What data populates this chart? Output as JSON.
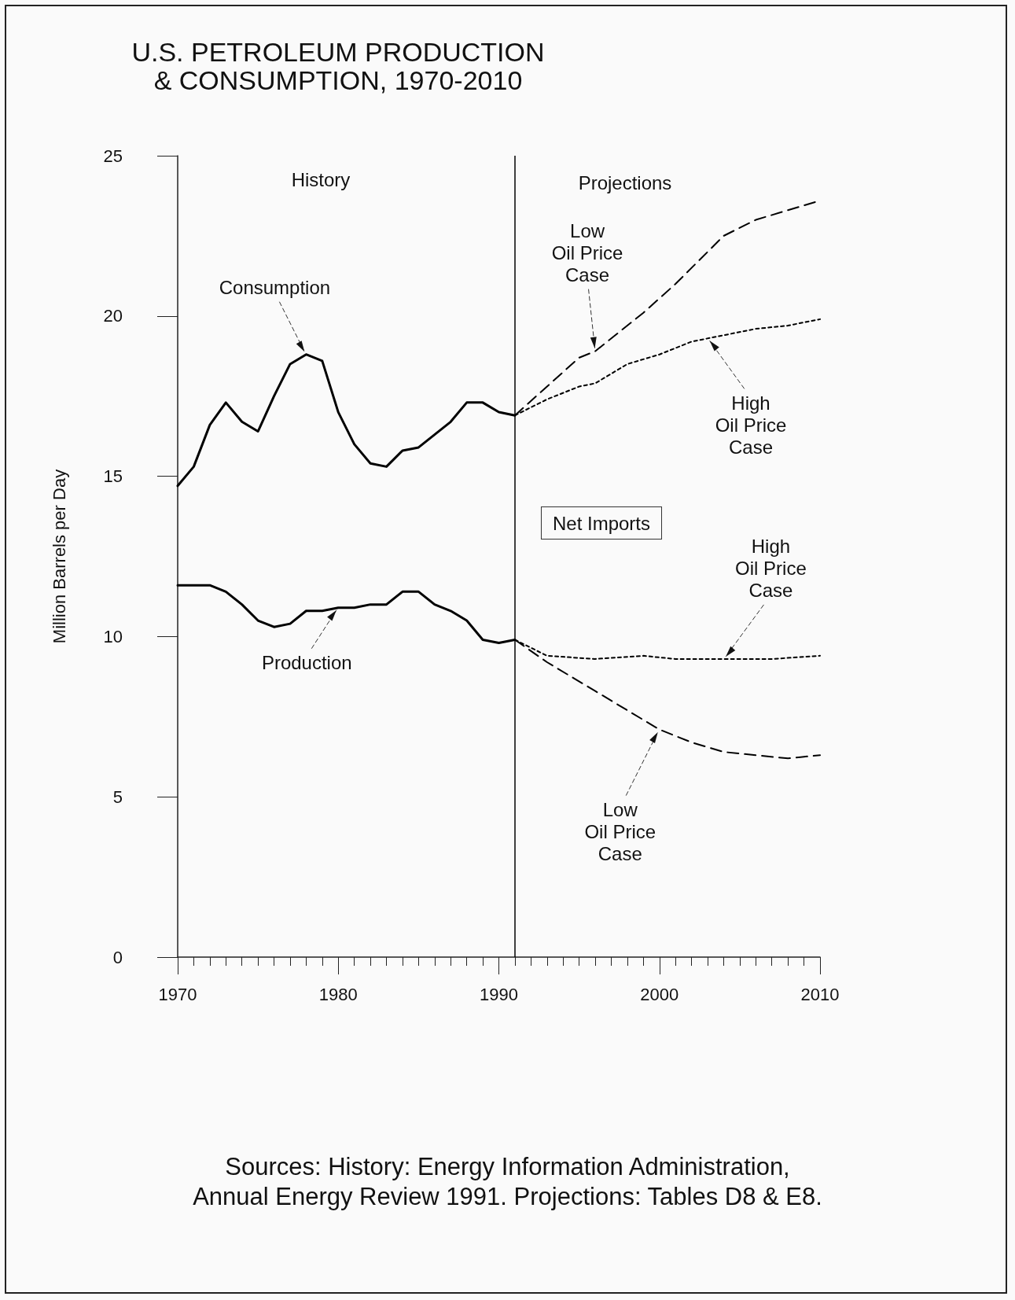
{
  "chart_data": {
    "type": "line",
    "title": "U.S. PETROLEUM PRODUCTION\n& CONSUMPTION, 1970-2010",
    "ylabel": "Million Barrels per Day",
    "xlim": [
      1970,
      2010
    ],
    "xticks": [
      1970,
      1980,
      1990,
      2000,
      2010
    ],
    "ylim": [
      0,
      25
    ],
    "yticks": [
      0,
      5,
      10,
      15,
      20,
      25
    ],
    "grid": false,
    "marker": "none",
    "series": [
      {
        "color": "#000000",
        "line_style": "solid",
        "x": [
          1970,
          1971,
          1972,
          1973,
          1974,
          1975,
          1976,
          1977,
          1978,
          1979,
          1980,
          1981,
          1982,
          1983,
          1984,
          1985,
          1986,
          1987,
          1988,
          1989,
          1990,
          1991
        ],
        "values": [
          14.7,
          15.3,
          16.6,
          17.3,
          16.7,
          16.4,
          17.5,
          18.5,
          18.8,
          18.6,
          17.0,
          16.0,
          15.4,
          15.3,
          15.8,
          15.9,
          16.3,
          16.7,
          17.3,
          17.3,
          17.0,
          16.9
        ]
      },
      {
        "color": "#000000",
        "line_style": "solid",
        "x": [
          1970,
          1971,
          1972,
          1973,
          1974,
          1975,
          1976,
          1977,
          1978,
          1979,
          1980,
          1981,
          1982,
          1983,
          1984,
          1985,
          1986,
          1987,
          1988,
          1989,
          1990,
          1991
        ],
        "values": [
          11.6,
          11.6,
          11.6,
          11.4,
          11.0,
          10.5,
          10.3,
          10.4,
          10.8,
          10.8,
          10.9,
          10.9,
          11.0,
          11.0,
          11.4,
          11.4,
          11.0,
          10.8,
          10.5,
          9.9,
          9.8,
          9.9
        ]
      },
      {
        "color": "#000000",
        "line_style": "dashed",
        "x": [
          1991,
          1993,
          1995,
          1996,
          1999,
          2001,
          2002,
          2004,
          2006,
          2008,
          2010
        ],
        "values": [
          16.9,
          17.8,
          18.7,
          18.9,
          20.1,
          21.0,
          21.5,
          22.5,
          23.0,
          23.3,
          23.6
        ]
      },
      {
        "color": "#000000",
        "line_style": "dotted",
        "x": [
          1991,
          1993,
          1995,
          1996,
          1998,
          2000,
          2002,
          2004,
          2006,
          2008,
          2010
        ],
        "values": [
          16.9,
          17.4,
          17.8,
          17.9,
          18.5,
          18.8,
          19.2,
          19.4,
          19.6,
          19.7,
          19.9
        ]
      },
      {
        "color": "#000000",
        "line_style": "dotted",
        "x": [
          1991,
          1993,
          1996,
          1999,
          2001,
          2004,
          2007,
          2010
        ],
        "values": [
          9.9,
          9.4,
          9.3,
          9.4,
          9.3,
          9.3,
          9.3,
          9.4
        ]
      },
      {
        "color": "#000000",
        "line_style": "dashed",
        "x": [
          1991,
          1993,
          1996,
          1999,
          2000,
          2002,
          2004,
          2006,
          2008,
          2010
        ],
        "values": [
          9.9,
          9.2,
          8.3,
          7.4,
          7.1,
          6.7,
          6.4,
          6.3,
          6.2,
          6.3
        ]
      }
    ],
    "ref_lines": [
      {
        "axis": "x",
        "value": 1991,
        "color": "#000000"
      }
    ],
    "annotations": [
      "History",
      "Projections",
      {
        "text": "Consumption",
        "x": 1978,
        "y": 18.8
      },
      {
        "text": "Production",
        "x": 1980,
        "y": 10.9
      },
      {
        "text": "Low\nOil Price\nCase",
        "x": 1996,
        "y": 18.9
      },
      {
        "text": "High\nOil Price\nCase",
        "x": 2003,
        "y": 19.3
      },
      "Net Imports",
      {
        "text": "High\nOil Price\nCase",
        "x": 2004,
        "y": 9.3
      },
      {
        "text": "Low\nOil Price\nCase",
        "x": 2000,
        "y": 7.1
      },
      "Sources: History: Energy Information Administration,\nAnnual Energy Review 1991. Projections: Tables D8 & E8."
    ]
  }
}
